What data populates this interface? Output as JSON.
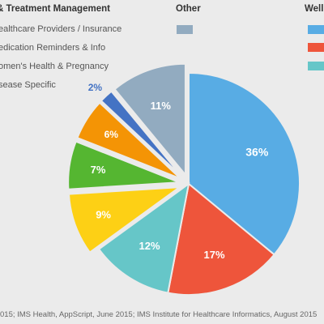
{
  "legend": {
    "group_left_heading": "& Treatment Management",
    "group_left_items": [
      "ealthcare Providers / Insurance",
      "edication Reminders & Info",
      "omen's Health & Pregnancy",
      "sease Specific"
    ],
    "group_mid_heading": "Other",
    "group_right_heading": "Well"
  },
  "source": "015; IMS Health, AppScript, June 2015; IMS Institute for Healthcare Informatics, August 2015",
  "colors": {
    "background": "#ebebeb",
    "other": "#92abc0",
    "blue": "#58ace4",
    "red": "#ee553b",
    "teal": "#66c6c8",
    "yellow": "#fdd015",
    "green": "#55b631",
    "orange": "#f49405",
    "navy": "#4473c4"
  },
  "chart_data": {
    "type": "pie",
    "slices": [
      {
        "label": "36%",
        "value": 36,
        "color": "#58ace4",
        "label_color": "#ffffff"
      },
      {
        "label": "17%",
        "value": 17,
        "color": "#ee553b",
        "label_color": "#ffffff"
      },
      {
        "label": "12%",
        "value": 12,
        "color": "#66c6c8",
        "label_color": "#ffffff"
      },
      {
        "label": "9%",
        "value": 9,
        "color": "#fdd015",
        "label_color": "#ffffff"
      },
      {
        "label": "7%",
        "value": 7,
        "color": "#55b631",
        "label_color": "#ffffff"
      },
      {
        "label": "6%",
        "value": 6,
        "color": "#f49405",
        "label_color": "#ffffff"
      },
      {
        "label": "2%",
        "value": 2,
        "color": "#4473c4",
        "label_color": "#4473c4",
        "label_outside": true
      },
      {
        "label": "11%",
        "value": 11,
        "color": "#92abc0",
        "label_color": "#ffffff"
      }
    ]
  }
}
